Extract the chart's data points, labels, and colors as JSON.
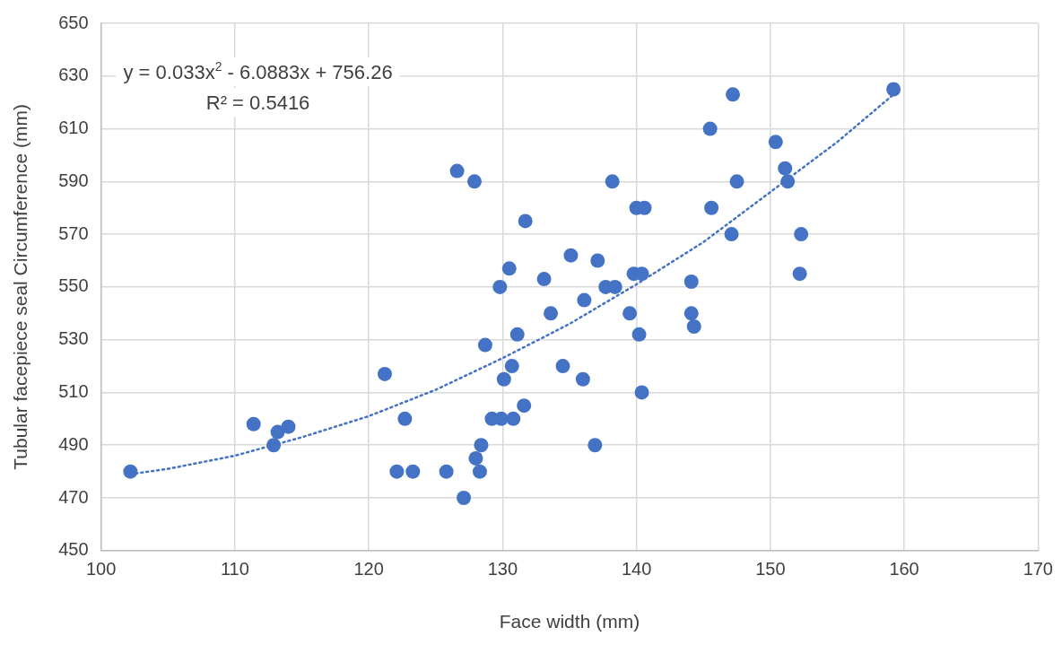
{
  "chart_data": {
    "type": "scatter",
    "xlabel": "Face width (mm)",
    "ylabel": "Tubular facepiece seal Circumference (mm)",
    "xlim": [
      100,
      170
    ],
    "xticks": [
      100,
      110,
      120,
      130,
      140,
      150,
      160,
      170
    ],
    "ylim": [
      450,
      650
    ],
    "yticks": [
      450,
      470,
      490,
      510,
      530,
      550,
      570,
      590,
      610,
      630,
      650
    ],
    "grid": true,
    "legend": false,
    "annotations": [
      "y = 0.033x$^{2}$ - 6.0883x + 756.26",
      "R² = 0.5416"
    ],
    "series": [
      {
        "color": "#4472c4",
        "marker": "circle",
        "x": [
          102.2,
          111.4,
          113.2,
          114.0,
          112.9,
          121.2,
          122.7,
          122.1,
          123.3,
          125.8,
          127.1,
          128.0,
          128.3,
          128.4,
          129.2,
          129.9,
          130.8,
          131.6,
          130.1,
          130.7,
          128.7,
          134.5,
          126.6,
          127.9,
          138.2,
          147.5,
          140.0,
          140.6,
          145.6,
          131.7,
          147.1,
          135.1,
          137.1,
          130.5,
          133.1,
          139.8,
          140.4,
          144.1,
          129.8,
          137.7,
          138.4,
          136.1,
          133.6,
          139.5,
          144.1,
          144.3,
          140.2,
          131.1,
          136.0,
          140.4,
          136.9,
          159.2,
          147.2,
          145.5,
          150.4,
          151.1,
          151.3,
          152.3,
          152.2
        ],
        "values": [
          480,
          498,
          495,
          497,
          490,
          517,
          500,
          480,
          480,
          480,
          470,
          485,
          480,
          490,
          500,
          500,
          500,
          505,
          515,
          520,
          528,
          520,
          594,
          590,
          590,
          590,
          580,
          580,
          580,
          575,
          570,
          562,
          560,
          557,
          553,
          555,
          555,
          552,
          550,
          550,
          550,
          545,
          540,
          540,
          540,
          535,
          532,
          532,
          515,
          510,
          490,
          625,
          623,
          610,
          605,
          595,
          590,
          570,
          555
        ]
      },
      {
        "type": "line",
        "color": "#4472c4",
        "marker": "none",
        "line_style": "dotted",
        "x": [
          102.2,
          105,
          110,
          115,
          120,
          125,
          130,
          135,
          140,
          145,
          150,
          155,
          159.2
        ],
        "values": [
          479,
          481,
          486,
          493,
          501,
          511,
          523,
          536,
          551,
          567,
          586,
          605,
          623
        ]
      }
    ]
  }
}
